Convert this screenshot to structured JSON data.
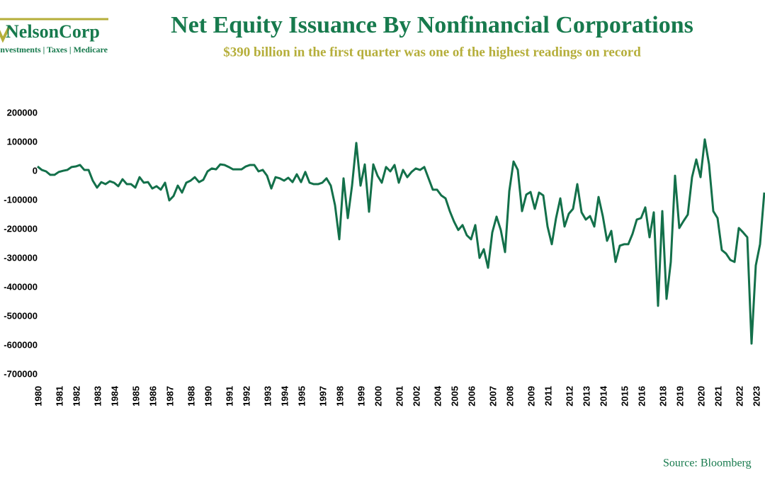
{
  "logo": {
    "name": "NelsonCorp",
    "tagline": "Investments | Taxes | Medicare"
  },
  "chart_data": {
    "type": "line",
    "title": "Net Equity Issuance By Nonfinancial Corporations",
    "subtitle": "$390 billion in the first quarter was one of the highest readings on record",
    "source": "Source: Bloomberg",
    "categories": [
      "1980",
      null,
      null,
      null,
      null,
      "1981",
      null,
      null,
      null,
      "1982",
      null,
      null,
      null,
      null,
      "1983",
      null,
      null,
      null,
      "1984",
      null,
      null,
      null,
      null,
      "1985",
      null,
      null,
      null,
      "1986",
      null,
      null,
      null,
      "1987",
      null,
      null,
      null,
      null,
      "1988",
      null,
      null,
      null,
      "1990",
      null,
      null,
      null,
      null,
      "1991",
      null,
      null,
      null,
      "1992",
      null,
      null,
      null,
      null,
      "1993",
      null,
      null,
      null,
      "1994",
      null,
      null,
      null,
      "1995",
      null,
      null,
      null,
      null,
      "1997",
      null,
      null,
      null,
      "1998",
      null,
      null,
      null,
      null,
      "1999",
      null,
      null,
      null,
      "2000",
      null,
      null,
      null,
      null,
      "2001",
      null,
      null,
      null,
      "2002",
      null,
      null,
      null,
      null,
      "2004",
      null,
      null,
      null,
      "2005",
      null,
      null,
      null,
      "2006",
      null,
      null,
      null,
      null,
      "2007",
      null,
      null,
      null,
      "2008",
      null,
      null,
      null,
      null,
      "2009",
      null,
      null,
      null,
      "2011",
      null,
      null,
      null,
      null,
      "2012",
      null,
      null,
      null,
      "2013",
      null,
      null,
      null,
      "2014",
      null,
      null,
      null,
      null,
      "2015",
      null,
      null,
      null,
      "2016",
      null,
      null,
      null,
      null,
      "2018",
      null,
      null,
      null,
      "2019",
      null,
      null,
      null,
      null,
      "2020",
      null,
      null,
      null,
      "2021",
      null,
      null,
      null,
      null,
      "2022",
      null,
      null,
      null,
      "2023",
      null,
      null
    ],
    "series": [
      {
        "name": "Net Equity Issuance",
        "color": "#13704a",
        "values": [
          17000,
          5000,
          0,
          -12000,
          -12000,
          -2000,
          2000,
          5000,
          15000,
          17000,
          22000,
          5000,
          5000,
          -32000,
          -56000,
          -37000,
          -44000,
          -34000,
          -39000,
          -51000,
          -27000,
          -44000,
          -44000,
          -56000,
          -20000,
          -39000,
          -37000,
          -59000,
          -51000,
          -63000,
          -39000,
          -100000,
          -85000,
          -49000,
          -73000,
          -39000,
          -32000,
          -20000,
          -37000,
          -29000,
          0,
          10000,
          7000,
          24000,
          22000,
          15000,
          7000,
          7000,
          7000,
          17000,
          22000,
          22000,
          0,
          5000,
          -15000,
          -59000,
          -20000,
          -24000,
          -32000,
          -22000,
          -37000,
          -10000,
          -37000,
          -2000,
          -39000,
          -44000,
          -44000,
          -39000,
          -24000,
          -49000,
          -117000,
          -234000,
          -24000,
          -161000,
          -49000,
          98000,
          -49000,
          24000,
          -139000,
          24000,
          -15000,
          -39000,
          15000,
          0,
          22000,
          -39000,
          5000,
          -20000,
          -2000,
          10000,
          5000,
          15000,
          -24000,
          -63000,
          -63000,
          -83000,
          -93000,
          -137000,
          -173000,
          -202000,
          -185000,
          -220000,
          -234000,
          -185000,
          -298000,
          -268000,
          -332000,
          -210000,
          -156000,
          -202000,
          -278000,
          -68000,
          34000,
          5000,
          -137000,
          -80000,
          -71000,
          -129000,
          -73000,
          -83000,
          -190000,
          -251000,
          -161000,
          -93000,
          -190000,
          -146000,
          -129000,
          -44000,
          -141000,
          -166000,
          -154000,
          -190000,
          -88000,
          -154000,
          -239000,
          -205000,
          -312000,
          -256000,
          -251000,
          -251000,
          -215000,
          -166000,
          -161000,
          -124000,
          -227000,
          -141000,
          -463000,
          -137000,
          -439000,
          -312000,
          -15000,
          -195000,
          -171000,
          -149000,
          -20000,
          41000,
          -20000,
          110000,
          24000,
          -137000,
          -161000,
          -271000,
          -283000,
          -305000,
          -312000,
          -195000,
          -210000,
          -227000,
          -593000,
          -324000,
          -251000,
          -73000
        ]
      }
    ],
    "ylim": [
      -700000,
      200000
    ],
    "yticks": [
      200000,
      100000,
      0,
      -100000,
      -200000,
      -300000,
      -400000,
      -500000,
      -600000,
      -700000
    ],
    "grid": false
  }
}
